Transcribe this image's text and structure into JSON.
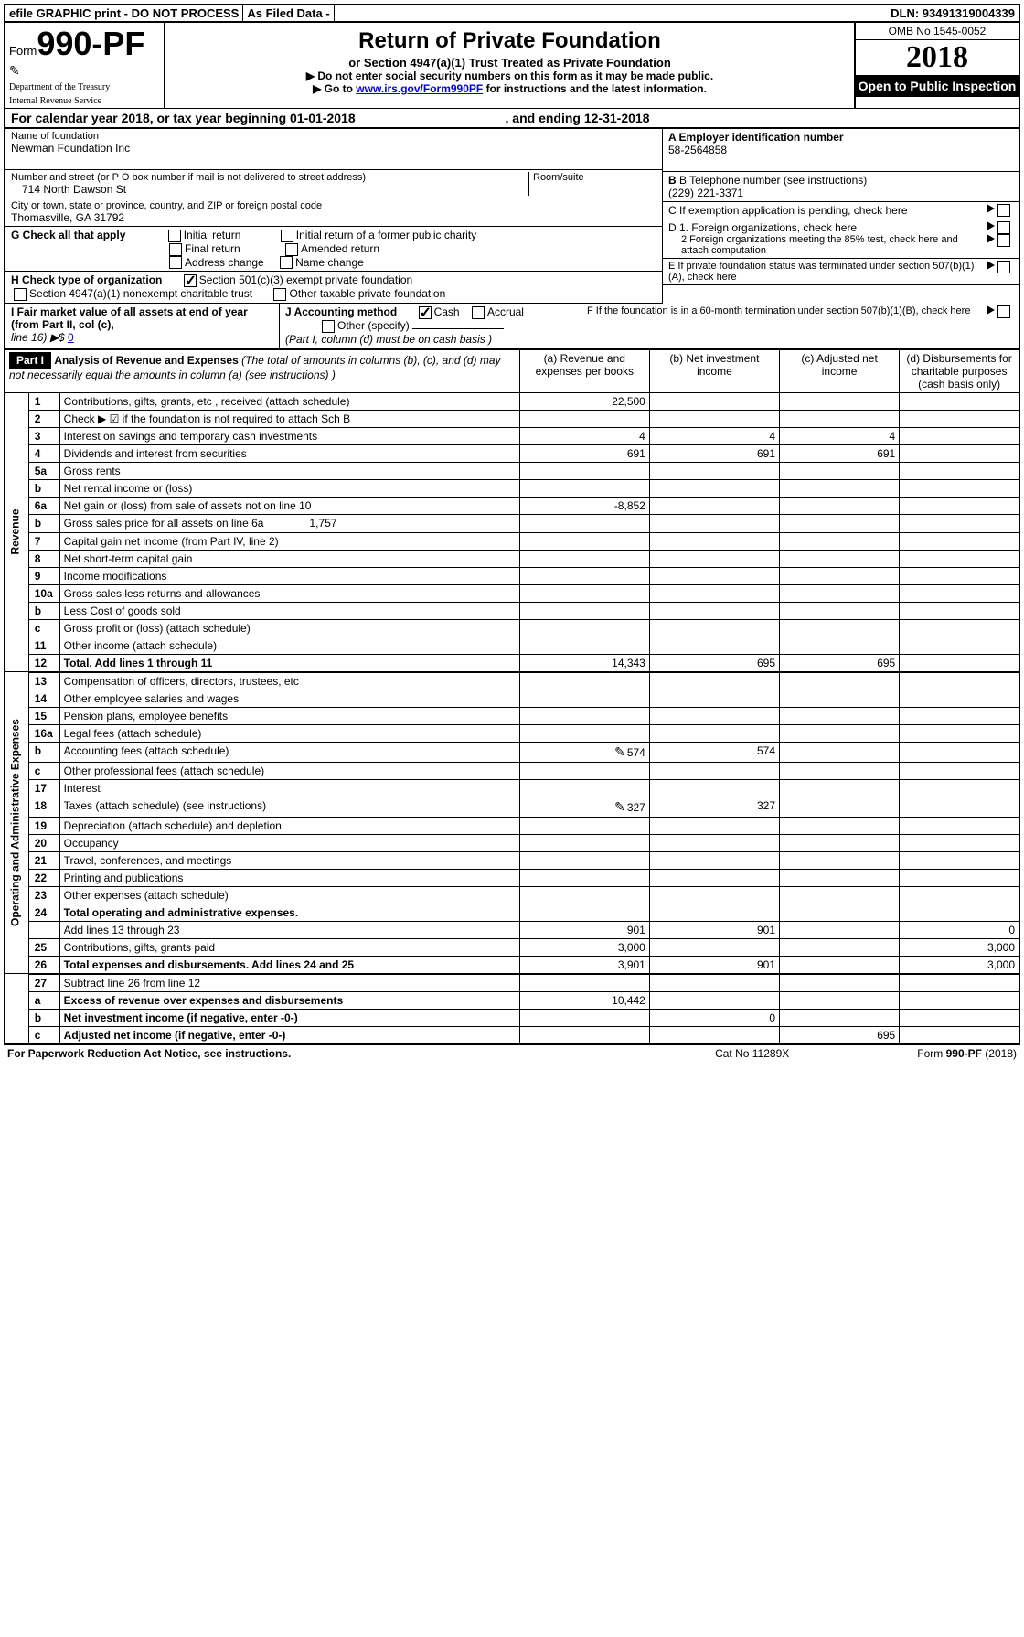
{
  "topbar": {
    "efile": "efile GRAPHIC print - DO NOT PROCESS",
    "asfiled": "As Filed Data -",
    "dln": "DLN: 93491319004339"
  },
  "header": {
    "form_prefix": "Form",
    "form_no": "990-PF",
    "dept1": "Department of the Treasury",
    "dept2": "Internal Revenue Service",
    "title": "Return of Private Foundation",
    "subtitle1": "or Section 4947(a)(1) Trust Treated as Private Foundation",
    "subtitle2a": "▶ Do not enter social security numbers on this form as it may be made public.",
    "subtitle2b": "▶ Go to ",
    "link": "www.irs.gov/Form990PF",
    "subtitle2c": " for instructions and the latest information.",
    "omb": "OMB No 1545-0052",
    "year": "2018",
    "otp": "Open to Public Inspection"
  },
  "cal": {
    "a": "For calendar year 2018, or tax year beginning 01-01-2018",
    "b": ", and ending 12-31-2018"
  },
  "id": {
    "name_lbl": "Name of foundation",
    "name": "Newman Foundation Inc",
    "addr_lbl": "Number and street (or P O  box number if mail is not delivered to street address)",
    "addr": "714 North Dawson St",
    "room_lbl": "Room/suite",
    "city_lbl": "City or town, state or province, country, and ZIP or foreign postal code",
    "city": "Thomasville, GA  31792",
    "a_lbl": "A Employer identification number",
    "a_val": "58-2564858",
    "b_lbl": "B Telephone number (see instructions)",
    "b_val": "(229) 221-3371",
    "c_lbl": "C If exemption application is pending, check here",
    "g_lbl": "G Check all that apply",
    "g1": "Initial return",
    "g2": "Initial return of a former public charity",
    "g3": "Final return",
    "g4": "Amended return",
    "g5": "Address change",
    "g6": "Name change",
    "h_lbl": "H Check type of organization",
    "h1": "Section 501(c)(3) exempt private foundation",
    "h2": "Section 4947(a)(1) nonexempt charitable trust",
    "h3": "Other taxable private foundation",
    "d1": "D 1. Foreign organizations, check here",
    "d2": "2 Foreign organizations meeting the 85% test, check here and attach computation",
    "e_lbl": "E  If private foundation status was terminated under section 507(b)(1)(A), check here",
    "i_lbl": "I Fair market value of all assets at end of year (from Part II, col  (c),",
    "i_line": "line 16) ▶$ ",
    "i_val": "0",
    "j_lbl": "J Accounting method",
    "j1": "Cash",
    "j2": "Accrual",
    "j3": "Other (specify)",
    "j_note": "(Part I, column (d) must be on cash basis )",
    "f_lbl": "F  If the foundation is in a 60-month termination under section 507(b)(1)(B), check here"
  },
  "part1": {
    "label": "Part I",
    "title": "Analysis of Revenue and Expenses",
    "note": "(The total of amounts in columns (b), (c), and (d) may not necessarily equal the amounts in column (a) (see instructions) )",
    "cola": "(a)   Revenue and expenses per books",
    "colb": "(b)  Net investment income",
    "colc": "(c)  Adjusted net income",
    "cold": "(d)  Disbursements for charitable purposes (cash basis only)"
  },
  "sections": {
    "revenue": "Revenue",
    "expenses": "Operating and Administrative Expenses"
  },
  "rows": [
    {
      "n": "1",
      "d": "Contributions, gifts, grants, etc , received (attach schedule)",
      "a": "22,500"
    },
    {
      "n": "2",
      "d": "Check ▶ ☑ if the foundation is not required to attach Sch  B"
    },
    {
      "n": "3",
      "d": "Interest on savings and temporary cash investments",
      "a": "4",
      "b": "4",
      "c": "4"
    },
    {
      "n": "4",
      "d": "Dividends and interest from securities",
      "a": "691",
      "b": "691",
      "c": "691"
    },
    {
      "n": "5a",
      "d": "Gross rents"
    },
    {
      "n": "b",
      "d": "Net rental income or (loss)"
    },
    {
      "n": "6a",
      "d": "Net gain or (loss) from sale of assets not on line 10",
      "a": "-8,852"
    },
    {
      "n": "b",
      "d": "Gross sales price for all assets on line 6a",
      "inline": "1,757"
    },
    {
      "n": "7",
      "d": "Capital gain net income (from Part IV, line 2)"
    },
    {
      "n": "8",
      "d": "Net short-term capital gain"
    },
    {
      "n": "9",
      "d": "Income modifications"
    },
    {
      "n": "10a",
      "d": "Gross sales less returns and allowances"
    },
    {
      "n": "b",
      "d": "Less  Cost of goods sold"
    },
    {
      "n": "c",
      "d": "Gross profit or (loss) (attach schedule)"
    },
    {
      "n": "11",
      "d": "Other income (attach schedule)"
    },
    {
      "n": "12",
      "d": "Total. Add lines 1 through 11",
      "bold": true,
      "a": "14,343",
      "b": "695",
      "c": "695"
    }
  ],
  "exp_rows": [
    {
      "n": "13",
      "d": "Compensation of officers, directors, trustees, etc"
    },
    {
      "n": "14",
      "d": "Other employee salaries and wages"
    },
    {
      "n": "15",
      "d": "Pension plans, employee benefits"
    },
    {
      "n": "16a",
      "d": "Legal fees (attach schedule)"
    },
    {
      "n": "b",
      "d": "Accounting fees (attach schedule)",
      "pen": true,
      "a": "574",
      "b": "574"
    },
    {
      "n": "c",
      "d": "Other professional fees (attach schedule)"
    },
    {
      "n": "17",
      "d": "Interest"
    },
    {
      "n": "18",
      "d": "Taxes (attach schedule) (see instructions)",
      "pen": true,
      "a": "327",
      "b": "327"
    },
    {
      "n": "19",
      "d": "Depreciation (attach schedule) and depletion"
    },
    {
      "n": "20",
      "d": "Occupancy"
    },
    {
      "n": "21",
      "d": "Travel, conferences, and meetings"
    },
    {
      "n": "22",
      "d": "Printing and publications"
    },
    {
      "n": "23",
      "d": "Other expenses (attach schedule)"
    },
    {
      "n": "24",
      "d": "Total operating and administrative expenses.",
      "bold": true
    },
    {
      "n": "",
      "d": "Add lines 13 through 23",
      "a": "901",
      "b": "901",
      "dd": "0"
    },
    {
      "n": "25",
      "d": "Contributions, gifts, grants paid",
      "a": "3,000",
      "dd": "3,000"
    },
    {
      "n": "26",
      "d": "Total expenses and disbursements. Add lines 24 and 25",
      "bold": true,
      "a": "3,901",
      "b": "901",
      "dd": "3,000"
    }
  ],
  "net_rows": [
    {
      "n": "27",
      "d": "Subtract line 26 from line 12"
    },
    {
      "n": "a",
      "d": "Excess of revenue over expenses and disbursements",
      "bold": true,
      "a": "10,442"
    },
    {
      "n": "b",
      "d": "Net investment income (if negative, enter -0-)",
      "bold": true,
      "b": "0"
    },
    {
      "n": "c",
      "d": "Adjusted net income (if negative, enter -0-)",
      "bold": true,
      "c": "695"
    }
  ],
  "footer": {
    "left": "For Paperwork Reduction Act Notice, see instructions.",
    "mid": "Cat  No  11289X",
    "right": "Form 990-PF (2018)"
  }
}
